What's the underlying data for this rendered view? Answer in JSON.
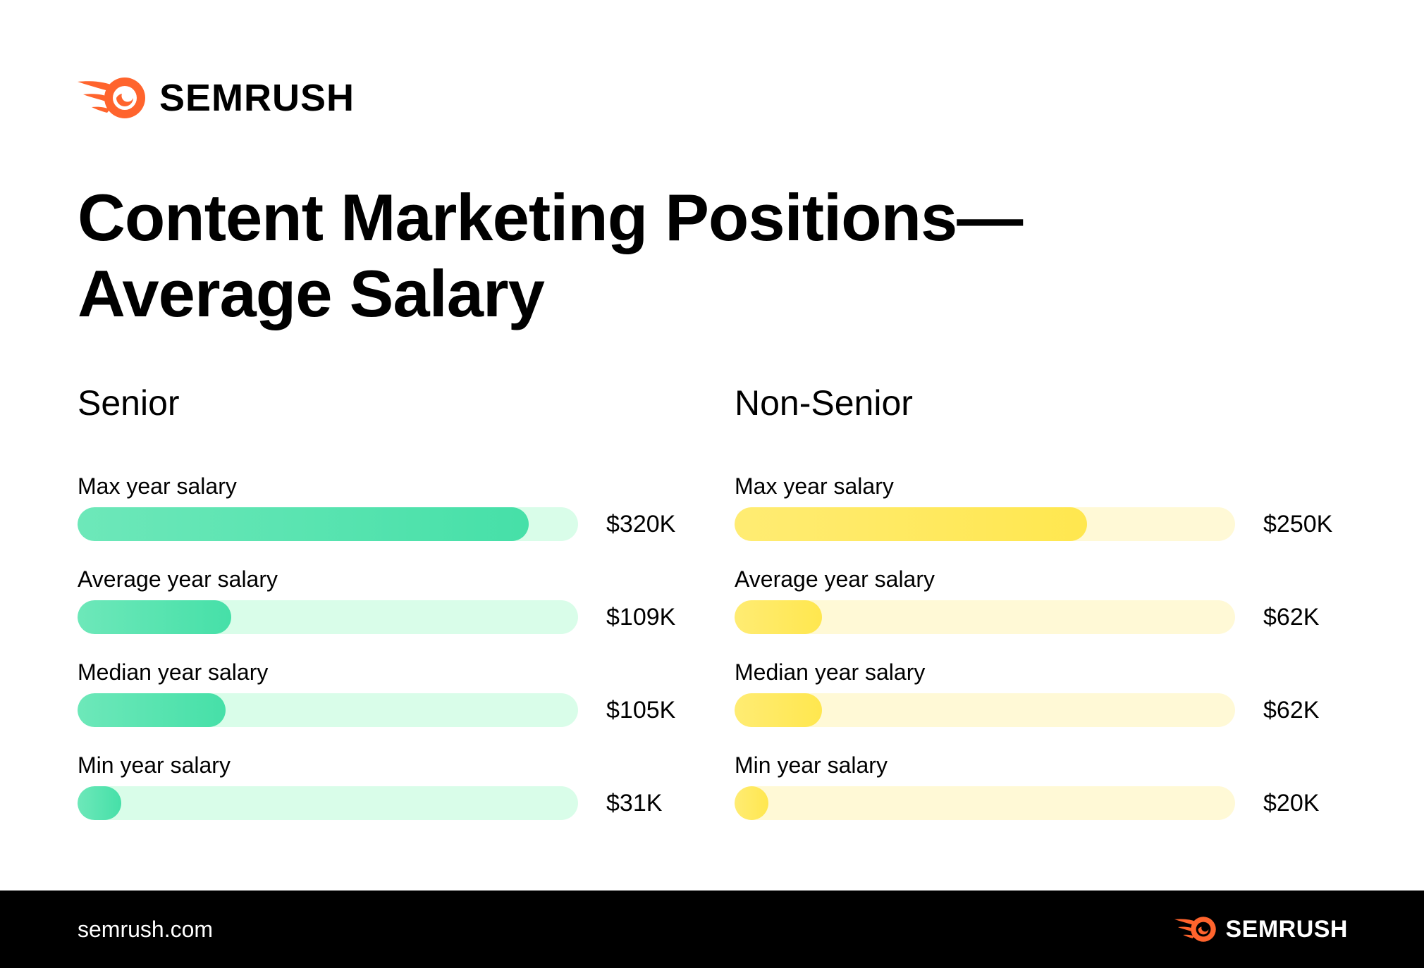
{
  "brand": {
    "name": "SEMRUSH",
    "color": "#ff642d"
  },
  "title_line1": "Content Marketing Positions—",
  "title_line2": "Average Salary",
  "footer": {
    "url": "semrush.com",
    "brand": "SEMRUSH"
  },
  "chart_data": [
    {
      "type": "bar",
      "orientation": "horizontal",
      "title": "Senior",
      "xlim": [
        0,
        355
      ],
      "unit": "$K",
      "fill_color": "#46e0a8",
      "track_color": "#d9fde9",
      "categories": [
        "Max year salary",
        "Average year salary",
        "Median year salary",
        "Min year salary"
      ],
      "values": [
        320,
        109,
        105,
        31
      ],
      "value_labels": [
        "$320K",
        "$109K",
        "$105K",
        "$31K"
      ]
    },
    {
      "type": "bar",
      "orientation": "horizontal",
      "title": "Non-Senior",
      "xlim": [
        0,
        355
      ],
      "unit": "$K",
      "fill_color": "#ffe74f",
      "track_color": "#fff9d6",
      "categories": [
        "Max year salary",
        "Average year salary",
        "Median year salary",
        "Min year salary"
      ],
      "values": [
        250,
        62,
        62,
        20
      ],
      "value_labels": [
        "$250K",
        "$62K",
        "$62K",
        "$20K"
      ]
    }
  ]
}
